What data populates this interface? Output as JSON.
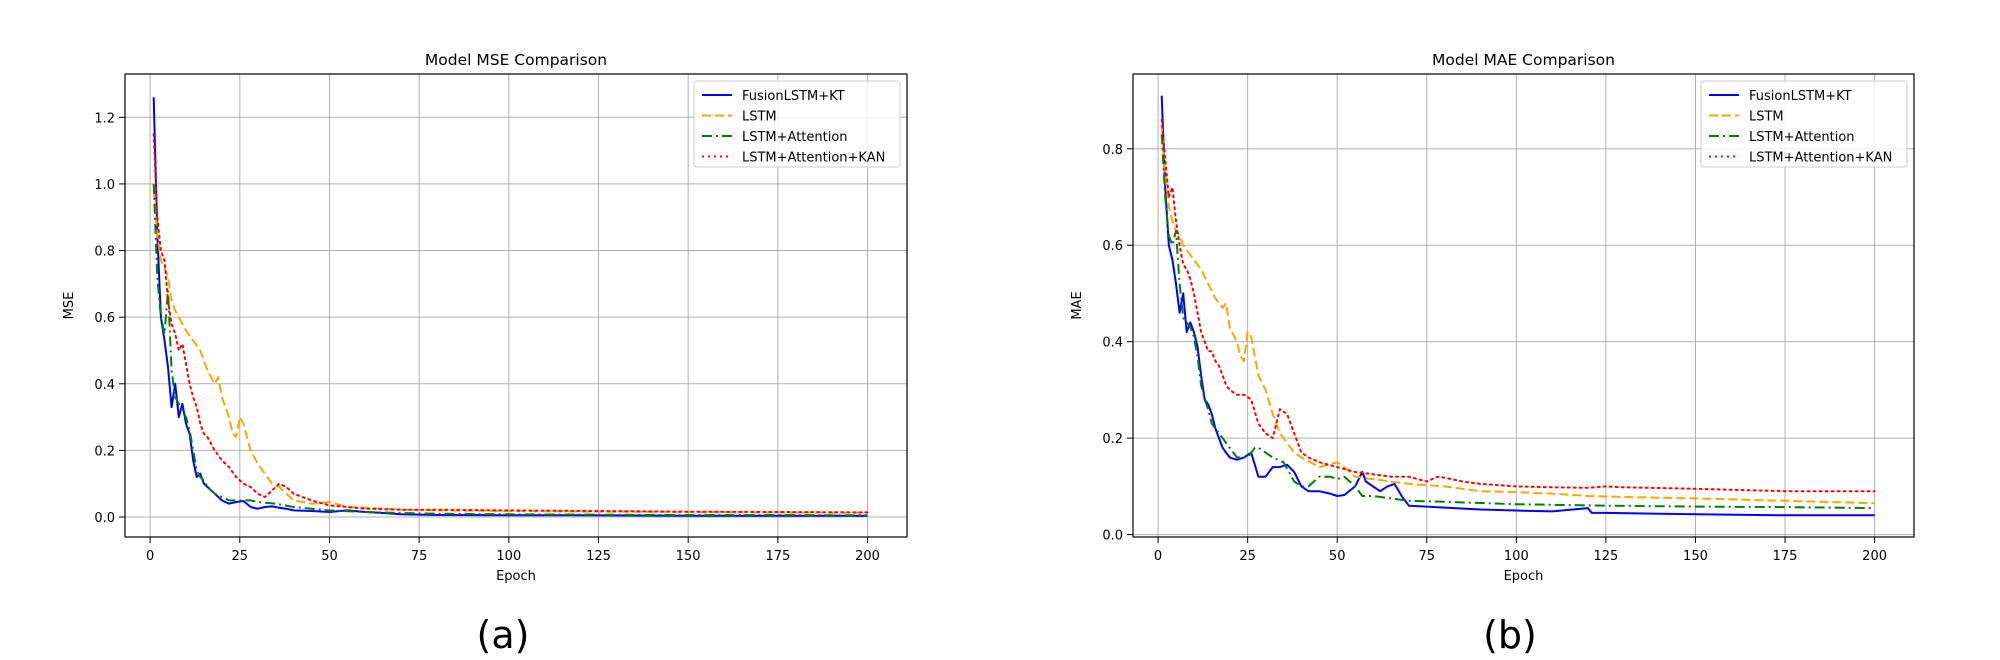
{
  "colors": {
    "FusionLSTM+KT": "#0000ff",
    "LSTM": "#ffa500",
    "LSTM+Attention": "#008000",
    "LSTM+Attention+KAN": "#ff0000",
    "grid": "#b0b0b0"
  },
  "captions": [
    "(a)",
    "(b)"
  ],
  "chart_data": [
    {
      "type": "line",
      "title": "Model MSE Comparison",
      "xlabel": "Epoch",
      "ylabel": "MSE",
      "xlim": [
        -7,
        211
      ],
      "ylim": [
        -0.06,
        1.33
      ],
      "xticks": [
        0,
        25,
        50,
        75,
        100,
        125,
        150,
        175,
        200
      ],
      "yticks": [
        0.0,
        0.2,
        0.4,
        0.6,
        0.8,
        1.0,
        1.2
      ],
      "ytick_decimals": 1,
      "grid": true,
      "legend": "top-right",
      "series": [
        {
          "name": "FusionLSTM+KT",
          "style": "solid",
          "x": [
            1,
            2,
            3,
            4,
            5,
            6,
            7,
            8,
            9,
            10,
            11,
            12,
            13,
            14,
            15,
            16,
            17,
            18,
            19,
            20,
            22,
            24,
            26,
            28,
            30,
            32,
            34,
            36,
            38,
            40,
            45,
            50,
            55,
            60,
            65,
            70,
            80,
            100,
            120,
            150,
            175,
            200
          ],
          "y": [
            1.26,
            0.85,
            0.6,
            0.53,
            0.45,
            0.33,
            0.4,
            0.3,
            0.34,
            0.28,
            0.25,
            0.17,
            0.12,
            0.13,
            0.1,
            0.09,
            0.08,
            0.07,
            0.06,
            0.05,
            0.04,
            0.045,
            0.048,
            0.03,
            0.025,
            0.03,
            0.032,
            0.028,
            0.025,
            0.02,
            0.018,
            0.015,
            0.02,
            0.015,
            0.012,
            0.008,
            0.006,
            0.005,
            0.005,
            0.004,
            0.004,
            0.004
          ]
        },
        {
          "name": "LSTM",
          "style": "dashed",
          "x": [
            1,
            2,
            3,
            4,
            5,
            6,
            7,
            8,
            10,
            12,
            14,
            16,
            18,
            19,
            20,
            22,
            23,
            24,
            25,
            26,
            27,
            28,
            30,
            32,
            34,
            36,
            38,
            40,
            45,
            50,
            55,
            60,
            65,
            70,
            80,
            100,
            125,
            150,
            175,
            200
          ],
          "y": [
            0.98,
            0.85,
            0.77,
            0.75,
            0.72,
            0.65,
            0.62,
            0.6,
            0.56,
            0.53,
            0.5,
            0.44,
            0.4,
            0.42,
            0.36,
            0.3,
            0.25,
            0.24,
            0.3,
            0.28,
            0.24,
            0.2,
            0.16,
            0.13,
            0.1,
            0.09,
            0.07,
            0.05,
            0.04,
            0.045,
            0.03,
            0.028,
            0.025,
            0.022,
            0.02,
            0.018,
            0.016,
            0.015,
            0.014,
            0.013
          ]
        },
        {
          "name": "LSTM+Attention",
          "style": "dashdot",
          "x": [
            1,
            2,
            3,
            4,
            5,
            6,
            7,
            8,
            9,
            10,
            11,
            12,
            13,
            14,
            15,
            16,
            18,
            20,
            22,
            25,
            28,
            30,
            35,
            40,
            45,
            50,
            60,
            70,
            80,
            100,
            125,
            150,
            175,
            200
          ],
          "y": [
            1.0,
            0.72,
            0.6,
            0.55,
            0.68,
            0.44,
            0.36,
            0.34,
            0.32,
            0.3,
            0.26,
            0.2,
            0.14,
            0.12,
            0.11,
            0.09,
            0.07,
            0.06,
            0.05,
            0.05,
            0.05,
            0.045,
            0.04,
            0.03,
            0.025,
            0.02,
            0.015,
            0.012,
            0.01,
            0.008,
            0.007,
            0.006,
            0.006,
            0.005
          ]
        },
        {
          "name": "LSTM+Attention+KAN",
          "style": "dotted",
          "x": [
            1,
            2,
            3,
            4,
            5,
            6,
            7,
            8,
            9,
            10,
            11,
            12,
            13,
            14,
            15,
            16,
            17,
            18,
            20,
            22,
            24,
            26,
            28,
            30,
            32,
            34,
            36,
            38,
            40,
            45,
            50,
            55,
            60,
            70,
            80,
            100,
            125,
            150,
            175,
            200
          ],
          "y": [
            1.15,
            0.9,
            0.8,
            0.77,
            0.65,
            0.58,
            0.55,
            0.5,
            0.52,
            0.46,
            0.4,
            0.36,
            0.33,
            0.28,
            0.25,
            0.24,
            0.22,
            0.2,
            0.17,
            0.15,
            0.12,
            0.1,
            0.09,
            0.07,
            0.06,
            0.08,
            0.1,
            0.09,
            0.07,
            0.05,
            0.035,
            0.03,
            0.025,
            0.022,
            0.022,
            0.02,
            0.018,
            0.016,
            0.015,
            0.014
          ]
        }
      ]
    },
    {
      "type": "line",
      "title": "Model MAE Comparison",
      "xlabel": "Epoch",
      "ylabel": "MAE",
      "xlim": [
        -7,
        211
      ],
      "ylim": [
        -0.005,
        0.955
      ],
      "xticks": [
        0,
        25,
        50,
        75,
        100,
        125,
        150,
        175,
        200
      ],
      "yticks": [
        0.0,
        0.2,
        0.4,
        0.6,
        0.8
      ],
      "ytick_decimals": 1,
      "grid": true,
      "legend": "top-right",
      "series": [
        {
          "name": "FusionLSTM+KT",
          "style": "solid",
          "x": [
            1,
            2,
            3,
            4,
            5,
            6,
            7,
            8,
            9,
            10,
            11,
            12,
            13,
            14,
            15,
            16,
            17,
            18,
            19,
            20,
            22,
            24,
            26,
            28,
            30,
            32,
            34,
            36,
            38,
            40,
            42,
            45,
            48,
            50,
            52,
            55,
            57,
            58,
            60,
            62,
            64,
            66,
            68,
            70,
            75,
            80,
            90,
            100,
            110,
            120,
            121,
            125,
            150,
            175,
            200
          ],
          "y": [
            0.91,
            0.72,
            0.6,
            0.57,
            0.52,
            0.46,
            0.5,
            0.42,
            0.44,
            0.42,
            0.39,
            0.33,
            0.28,
            0.27,
            0.25,
            0.22,
            0.2,
            0.18,
            0.17,
            0.16,
            0.155,
            0.16,
            0.17,
            0.12,
            0.12,
            0.14,
            0.14,
            0.145,
            0.13,
            0.1,
            0.09,
            0.09,
            0.085,
            0.08,
            0.082,
            0.1,
            0.13,
            0.11,
            0.1,
            0.09,
            0.1,
            0.105,
            0.08,
            0.06,
            0.058,
            0.056,
            0.052,
            0.05,
            0.048,
            0.055,
            0.045,
            0.045,
            0.042,
            0.04,
            0.04
          ]
        },
        {
          "name": "LSTM",
          "style": "dashed",
          "x": [
            1,
            2,
            3,
            4,
            5,
            6,
            7,
            8,
            10,
            12,
            14,
            16,
            18,
            19,
            20,
            22,
            23,
            24,
            25,
            26,
            27,
            28,
            30,
            32,
            34,
            36,
            38,
            40,
            45,
            50,
            52,
            55,
            60,
            65,
            70,
            80,
            90,
            100,
            110,
            120,
            130,
            150,
            175,
            200
          ],
          "y": [
            0.85,
            0.75,
            0.68,
            0.65,
            0.63,
            0.62,
            0.6,
            0.59,
            0.57,
            0.55,
            0.52,
            0.49,
            0.47,
            0.48,
            0.43,
            0.4,
            0.37,
            0.36,
            0.42,
            0.41,
            0.37,
            0.33,
            0.3,
            0.25,
            0.21,
            0.19,
            0.17,
            0.16,
            0.14,
            0.15,
            0.14,
            0.12,
            0.115,
            0.11,
            0.105,
            0.1,
            0.09,
            0.088,
            0.085,
            0.08,
            0.078,
            0.075,
            0.07,
            0.065
          ]
        },
        {
          "name": "LSTM+Attention",
          "style": "dashdot",
          "x": [
            1,
            2,
            3,
            4,
            5,
            6,
            7,
            8,
            9,
            10,
            11,
            12,
            13,
            14,
            15,
            16,
            18,
            20,
            22,
            25,
            27,
            28,
            30,
            32,
            35,
            38,
            40,
            42,
            45,
            48,
            50,
            52,
            55,
            57,
            60,
            65,
            70,
            80,
            100,
            125,
            150,
            175,
            200
          ],
          "y": [
            0.83,
            0.7,
            0.62,
            0.6,
            0.63,
            0.52,
            0.45,
            0.44,
            0.43,
            0.41,
            0.37,
            0.31,
            0.28,
            0.26,
            0.23,
            0.22,
            0.2,
            0.18,
            0.16,
            0.16,
            0.18,
            0.18,
            0.17,
            0.16,
            0.15,
            0.11,
            0.1,
            0.1,
            0.12,
            0.12,
            0.115,
            0.12,
            0.1,
            0.08,
            0.08,
            0.075,
            0.07,
            0.068,
            0.063,
            0.06,
            0.058,
            0.057,
            0.055
          ]
        },
        {
          "name": "LSTM+Attention+KAN",
          "style": "dotted",
          "x": [
            1,
            2,
            3,
            4,
            5,
            6,
            7,
            8,
            9,
            10,
            11,
            12,
            13,
            14,
            15,
            16,
            17,
            18,
            19,
            20,
            22,
            24,
            26,
            28,
            30,
            32,
            34,
            36,
            38,
            40,
            42,
            45,
            50,
            55,
            60,
            65,
            70,
            75,
            78,
            80,
            85,
            90,
            100,
            110,
            120,
            125,
            130,
            150,
            175,
            200
          ],
          "y": [
            0.86,
            0.78,
            0.7,
            0.72,
            0.65,
            0.6,
            0.56,
            0.55,
            0.53,
            0.5,
            0.46,
            0.42,
            0.4,
            0.38,
            0.38,
            0.36,
            0.35,
            0.33,
            0.31,
            0.3,
            0.29,
            0.29,
            0.28,
            0.23,
            0.21,
            0.2,
            0.26,
            0.25,
            0.21,
            0.17,
            0.16,
            0.15,
            0.14,
            0.13,
            0.125,
            0.12,
            0.12,
            0.11,
            0.12,
            0.118,
            0.11,
            0.105,
            0.1,
            0.098,
            0.097,
            0.1,
            0.098,
            0.095,
            0.09,
            0.09
          ]
        }
      ]
    }
  ]
}
